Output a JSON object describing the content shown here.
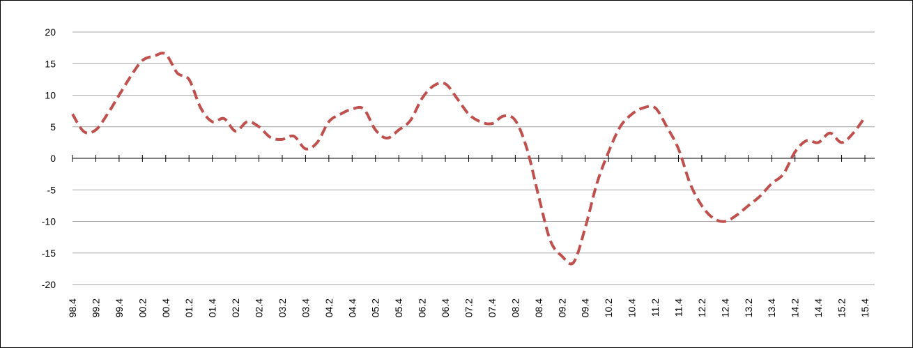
{
  "chart_data": {
    "type": "line",
    "categories": [
      "98.4",
      null,
      "99.2",
      null,
      "99.4",
      null,
      "00.2",
      null,
      "00.4",
      null,
      "01.2",
      null,
      "01.4",
      null,
      "02.2",
      null,
      "02.4",
      null,
      "03.2",
      null,
      "03.4",
      null,
      "04.2",
      null,
      "04.4",
      null,
      "05.2",
      null,
      "05.4",
      null,
      "06.2",
      null,
      "06.4",
      null,
      "07.2",
      null,
      "07.4",
      null,
      "08.2",
      null,
      "08.4",
      null,
      "09.2",
      null,
      "09.4",
      null,
      "10.2",
      null,
      "10.4",
      null,
      "11.2",
      null,
      "11.4",
      null,
      "12.2",
      null,
      "12.4",
      null,
      "13.2",
      null,
      "13.4",
      null,
      "14.2",
      null,
      "14.4",
      null,
      "15.2",
      null,
      "15.4"
    ],
    "series": [
      {
        "color": "#c0504d",
        "line_style": "dashed",
        "values": [
          7,
          4.2,
          4.5,
          7,
          10,
          13,
          15.5,
          16.2,
          16.5,
          13.5,
          12.5,
          8,
          5.8,
          6.3,
          4.3,
          5.8,
          5,
          3.3,
          3,
          3.5,
          1.5,
          2.5,
          5.8,
          7,
          7.8,
          7.8,
          4.5,
          3.2,
          4.5,
          6,
          9.5,
          11.5,
          11.8,
          9.5,
          7,
          5.8,
          5.5,
          6.7,
          6,
          1.5,
          -6,
          -13,
          -15.5,
          -16.5,
          -11,
          -4,
          1,
          5,
          7,
          8,
          8,
          5,
          1.5,
          -4,
          -7.5,
          -9.5,
          -10,
          -9,
          -7.5,
          -6,
          -4,
          -2.5,
          1,
          2.8,
          2.5,
          4,
          2.5,
          4,
          6.5
        ]
      }
    ],
    "ylim": [
      -20,
      20
    ],
    "yticks": [
      -20,
      -15,
      -10,
      -5,
      0,
      5,
      10,
      15,
      20
    ],
    "grid": true
  }
}
